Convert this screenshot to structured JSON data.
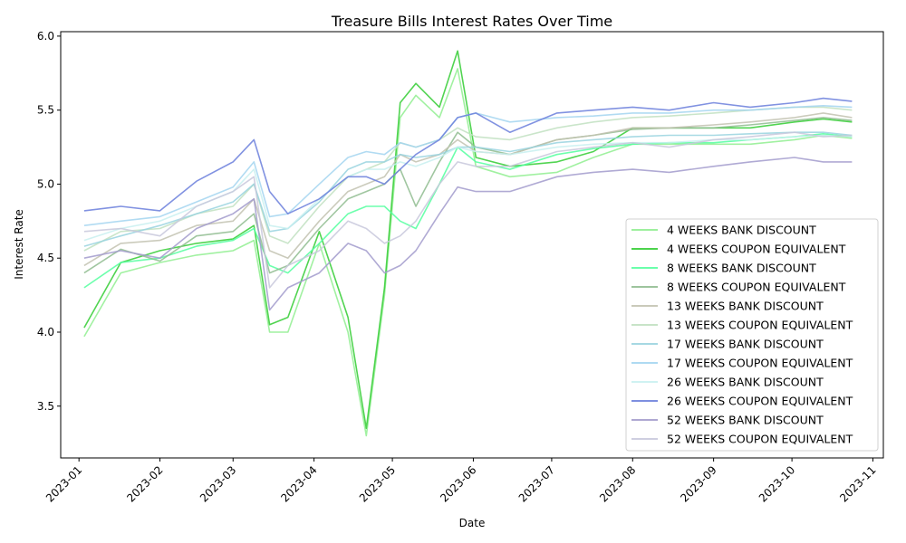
{
  "chart_data": {
    "type": "line",
    "title": "Treasure Bills Interest Rates Over Time",
    "xlabel": "Date",
    "ylabel": "Interest Rate",
    "xlim": [
      "2022-12-25",
      "2023-11-05"
    ],
    "ylim": [
      3.15,
      6.03
    ],
    "x_ticks": [
      "2023-01",
      "2023-02",
      "2023-03",
      "2023-04",
      "2023-05",
      "2023-06",
      "2023-07",
      "2023-08",
      "2023-09",
      "2023-10",
      "2023-11"
    ],
    "y_ticks": [
      3.5,
      4.0,
      4.5,
      5.0,
      5.5,
      6.0
    ],
    "grid": false,
    "legend_position": "lower-right",
    "x": [
      "2023-01-03",
      "2023-01-17",
      "2023-02-01",
      "2023-02-15",
      "2023-03-01",
      "2023-03-09",
      "2023-03-15",
      "2023-03-22",
      "2023-04-03",
      "2023-04-14",
      "2023-04-21",
      "2023-04-28",
      "2023-05-04",
      "2023-05-10",
      "2023-05-19",
      "2023-05-26",
      "2023-06-02",
      "2023-06-15",
      "2023-07-03",
      "2023-07-17",
      "2023-08-01",
      "2023-08-15",
      "2023-09-01",
      "2023-09-15",
      "2023-10-02",
      "2023-10-13",
      "2023-10-24"
    ],
    "series": [
      {
        "name": "4 WEEKS BANK DISCOUNT",
        "color": "#90ee90",
        "values": [
          3.97,
          4.4,
          4.47,
          4.52,
          4.55,
          4.62,
          4.0,
          4.0,
          4.6,
          4.0,
          3.3,
          4.25,
          5.45,
          5.6,
          5.45,
          5.78,
          5.12,
          5.05,
          5.08,
          5.18,
          5.27,
          5.27,
          5.27,
          5.27,
          5.3,
          5.33,
          5.31
        ]
      },
      {
        "name": "4 WEEKS COUPON EQUIVALENT",
        "color": "#32cd32",
        "values": [
          4.03,
          4.47,
          4.55,
          4.6,
          4.63,
          4.72,
          4.05,
          4.1,
          4.68,
          4.1,
          3.35,
          4.3,
          5.55,
          5.68,
          5.52,
          5.9,
          5.18,
          5.12,
          5.15,
          5.22,
          5.38,
          5.38,
          5.38,
          5.38,
          5.42,
          5.44,
          5.42
        ]
      },
      {
        "name": "8 WEEKS BANK DISCOUNT",
        "color": "#54ff9f",
        "values": [
          4.3,
          4.47,
          4.5,
          4.58,
          4.62,
          4.7,
          4.45,
          4.4,
          4.6,
          4.8,
          4.85,
          4.85,
          4.75,
          4.7,
          5.0,
          5.25,
          5.15,
          5.1,
          5.2,
          5.24,
          5.27,
          5.28,
          5.28,
          5.3,
          5.32,
          5.34,
          5.32
        ]
      },
      {
        "name": "8 WEEKS COUPON EQUIVALENT",
        "color": "#8fbc8f",
        "values": [
          4.4,
          4.56,
          4.48,
          4.65,
          4.68,
          4.8,
          4.4,
          4.45,
          4.7,
          4.9,
          4.95,
          5.0,
          5.1,
          4.85,
          5.15,
          5.35,
          5.25,
          5.2,
          5.3,
          5.33,
          5.37,
          5.38,
          5.38,
          5.4,
          5.43,
          5.45,
          5.43
        ]
      },
      {
        "name": "13 WEEKS BANK DISCOUNT",
        "color": "#c2c2b0",
        "values": [
          4.45,
          4.6,
          4.62,
          4.72,
          4.75,
          4.9,
          4.55,
          4.5,
          4.75,
          4.95,
          5.0,
          5.05,
          5.2,
          5.15,
          5.2,
          5.3,
          5.22,
          5.2,
          5.3,
          5.33,
          5.38,
          5.38,
          5.4,
          5.42,
          5.45,
          5.48,
          5.45
        ]
      },
      {
        "name": "13 WEEKS COUPON EQUIVALENT",
        "color": "#c1e1c1",
        "values": [
          4.55,
          4.68,
          4.7,
          4.8,
          4.85,
          5.0,
          4.65,
          4.6,
          4.85,
          5.05,
          5.1,
          5.15,
          5.28,
          5.25,
          5.3,
          5.38,
          5.32,
          5.3,
          5.38,
          5.42,
          5.45,
          5.46,
          5.48,
          5.5,
          5.52,
          5.52,
          5.5
        ]
      },
      {
        "name": "17 WEEKS BANK DISCOUNT",
        "color": "#99d3df",
        "values": [
          4.58,
          4.65,
          4.72,
          4.8,
          4.88,
          5.0,
          4.68,
          4.7,
          4.88,
          5.1,
          5.15,
          5.15,
          5.2,
          5.18,
          5.2,
          5.25,
          5.25,
          5.22,
          5.28,
          5.3,
          5.32,
          5.33,
          5.33,
          5.34,
          5.35,
          5.35,
          5.33
        ]
      },
      {
        "name": "17 WEEKS COUPON EQUIVALENT",
        "color": "#a3d5f0",
        "values": [
          4.72,
          4.75,
          4.78,
          4.88,
          4.98,
          5.15,
          4.78,
          4.8,
          5.0,
          5.18,
          5.22,
          5.2,
          5.28,
          5.25,
          5.3,
          5.45,
          5.48,
          5.42,
          5.45,
          5.46,
          5.48,
          5.48,
          5.5,
          5.5,
          5.52,
          5.53,
          5.52
        ]
      },
      {
        "name": "26 WEEKS BANK DISCOUNT",
        "color": "#c8f0f0",
        "values": [
          4.62,
          4.7,
          4.75,
          4.85,
          4.95,
          5.1,
          4.72,
          4.7,
          4.9,
          5.05,
          5.1,
          5.1,
          5.15,
          5.12,
          5.18,
          5.25,
          5.22,
          5.2,
          5.25,
          5.27,
          5.28,
          5.28,
          5.3,
          5.3,
          5.32,
          5.33,
          5.32
        ]
      },
      {
        "name": "26 WEEKS COUPON EQUIVALENT",
        "color": "#6b7fdc",
        "values": [
          4.82,
          4.85,
          4.82,
          5.02,
          5.15,
          5.3,
          4.95,
          4.8,
          4.9,
          5.05,
          5.05,
          5.0,
          5.1,
          5.2,
          5.3,
          5.45,
          5.48,
          5.35,
          5.48,
          5.5,
          5.52,
          5.5,
          5.55,
          5.52,
          5.55,
          5.58,
          5.56
        ]
      },
      {
        "name": "52 WEEKS BANK DISCOUNT",
        "color": "#a29bcc",
        "values": [
          4.5,
          4.55,
          4.5,
          4.7,
          4.8,
          4.9,
          4.15,
          4.3,
          4.4,
          4.6,
          4.55,
          4.4,
          4.45,
          4.55,
          4.8,
          4.98,
          4.95,
          4.95,
          5.05,
          5.08,
          5.1,
          5.08,
          5.12,
          5.15,
          5.18,
          5.15,
          5.15
        ]
      },
      {
        "name": "52 WEEKS COUPON EQUIVALENT",
        "color": "#c8c8dc",
        "values": [
          4.68,
          4.7,
          4.65,
          4.85,
          4.95,
          5.05,
          4.3,
          4.45,
          4.55,
          4.75,
          4.7,
          4.6,
          4.65,
          4.75,
          5.0,
          5.15,
          5.12,
          5.12,
          5.22,
          5.25,
          5.28,
          5.25,
          5.3,
          5.32,
          5.35,
          5.32,
          5.33
        ]
      }
    ]
  }
}
